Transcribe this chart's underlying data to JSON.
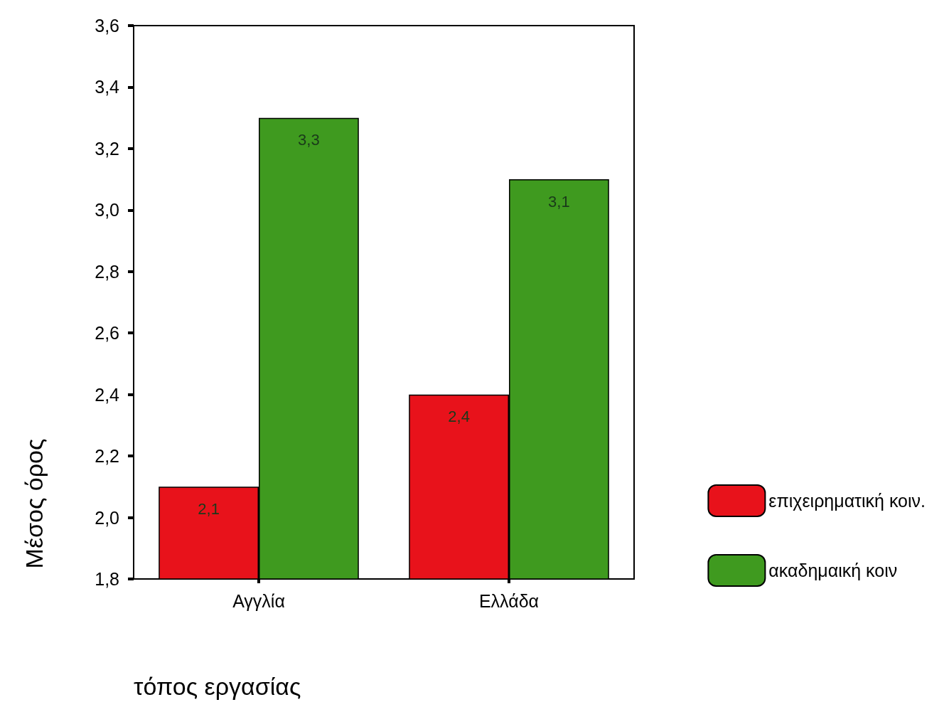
{
  "chart_data": {
    "type": "bar",
    "xlabel": "τόπος εργασίας",
    "ylabel": "Μέσος όρος",
    "categories": [
      "Αγγλία",
      "Ελλάδα"
    ],
    "series": [
      {
        "name": "επιχειρηματική κοιν.",
        "color": "#e8121b",
        "values": [
          2.1,
          2.4
        ],
        "value_labels": [
          "2,1",
          "2,4"
        ]
      },
      {
        "name": "ακαδημαική κοιν",
        "color": "#3f9a1f",
        "values": [
          3.3,
          3.1
        ],
        "value_labels": [
          "3,3",
          "3,1"
        ]
      }
    ],
    "ylim": [
      1.8,
      3.6
    ],
    "yticks": [
      {
        "value": 1.8,
        "label": "1,8"
      },
      {
        "value": 2.0,
        "label": "2,0"
      },
      {
        "value": 2.2,
        "label": "2,2"
      },
      {
        "value": 2.4,
        "label": "2,4"
      },
      {
        "value": 2.6,
        "label": "2,6"
      },
      {
        "value": 2.8,
        "label": "2,8"
      },
      {
        "value": 3.0,
        "label": "3,0"
      },
      {
        "value": 3.2,
        "label": "3,2"
      },
      {
        "value": 3.4,
        "label": "3,4"
      },
      {
        "value": 3.6,
        "label": "3,6"
      }
    ],
    "grid": false,
    "legend": "bottom right"
  }
}
